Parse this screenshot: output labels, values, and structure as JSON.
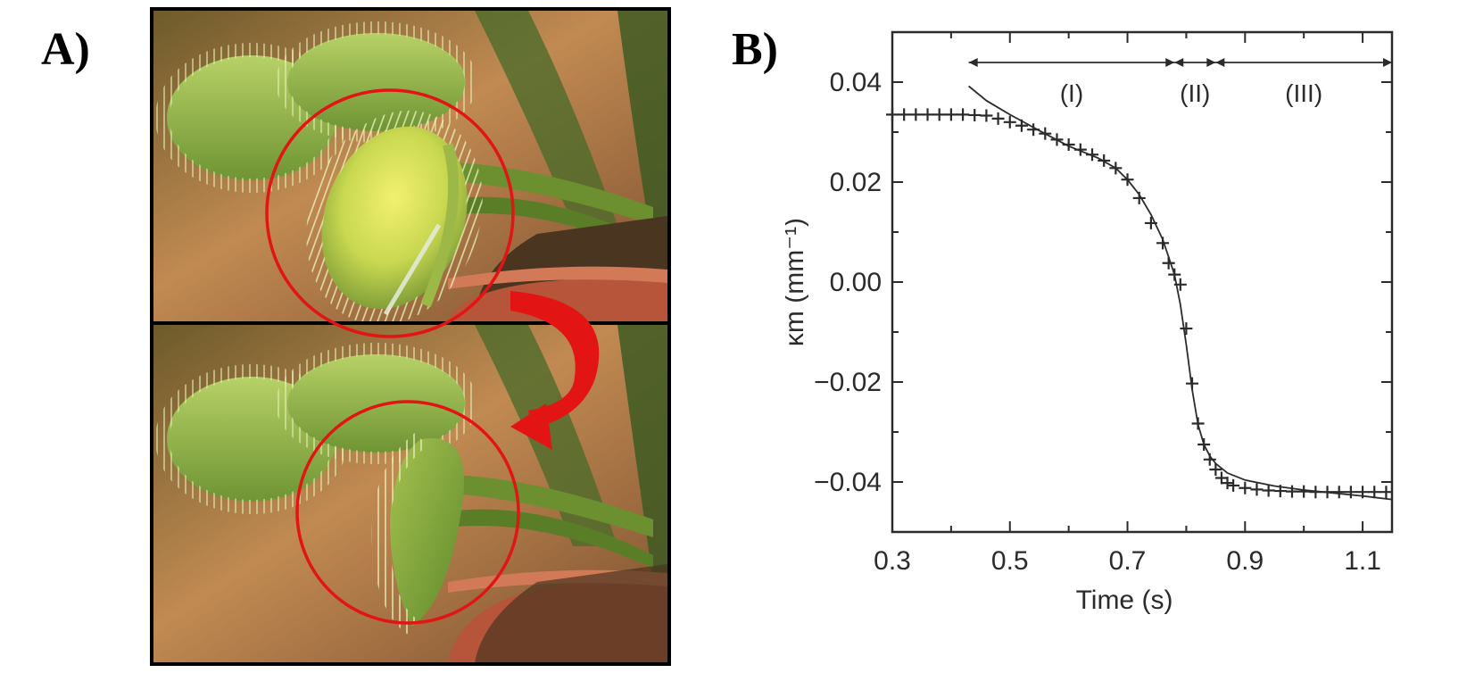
{
  "panels": {
    "a_label": "A)",
    "b_label": "B)"
  },
  "photo": {
    "frames": [
      {
        "state": "open"
      },
      {
        "state": "closed"
      }
    ],
    "highlight_color": "#e21414",
    "arrow_color": "#e21414"
  },
  "chart_data": {
    "type": "scatter",
    "title": "",
    "xlabel": "Time (s)",
    "ylabel": "κm (mm⁻¹)",
    "xlim": [
      0.3,
      1.15
    ],
    "ylim": [
      -0.05,
      0.05
    ],
    "x_ticks": [
      0.3,
      0.5,
      0.7,
      0.9,
      1.1
    ],
    "x_tick_labels": [
      "0.3",
      "0.5",
      "0.7",
      "0.9",
      "1.1"
    ],
    "y_ticks": [
      0.04,
      0.02,
      0.0,
      -0.02,
      -0.04
    ],
    "y_tick_labels": [
      "0.04",
      "0.02",
      "0.00",
      "−0.02",
      "−0.04"
    ],
    "grid": false,
    "phases": [
      {
        "label": "(I)",
        "x_start": 0.43,
        "x_end": 0.78
      },
      {
        "label": "(II)",
        "x_start": 0.78,
        "x_end": 0.85
      },
      {
        "label": "(III)",
        "x_start": 0.85,
        "x_end": 1.15
      }
    ],
    "series": [
      {
        "marker": "plus",
        "x": [
          0.3,
          0.32,
          0.34,
          0.36,
          0.38,
          0.4,
          0.42,
          0.44,
          0.46,
          0.48,
          0.5,
          0.52,
          0.54,
          0.56,
          0.58,
          0.6,
          0.62,
          0.64,
          0.66,
          0.68,
          0.7,
          0.72,
          0.74,
          0.76,
          0.77,
          0.78,
          0.79,
          0.8,
          0.81,
          0.82,
          0.83,
          0.84,
          0.85,
          0.86,
          0.87,
          0.88,
          0.9,
          0.92,
          0.94,
          0.96,
          0.98,
          1.0,
          1.02,
          1.04,
          1.06,
          1.08,
          1.1,
          1.12,
          1.14
        ],
        "y": [
          0.0335,
          0.0335,
          0.0335,
          0.0335,
          0.0335,
          0.0335,
          0.0335,
          0.0334,
          0.0333,
          0.0327,
          0.032,
          0.0313,
          0.0305,
          0.0297,
          0.0285,
          0.0275,
          0.0265,
          0.0255,
          0.0243,
          0.0228,
          0.0205,
          0.0168,
          0.0118,
          0.0078,
          0.0038,
          0.0015,
          -0.0005,
          -0.0093,
          -0.0203,
          -0.0283,
          -0.0325,
          -0.0355,
          -0.0375,
          -0.0392,
          -0.0402,
          -0.0407,
          -0.0412,
          -0.0415,
          -0.0417,
          -0.0418,
          -0.0419,
          -0.0419,
          -0.042,
          -0.042,
          -0.042,
          -0.042,
          -0.042,
          -0.042,
          -0.042
        ]
      },
      {
        "marker": "line",
        "x": [
          0.43,
          0.46,
          0.5,
          0.55,
          0.6,
          0.65,
          0.68,
          0.7,
          0.72,
          0.74,
          0.76,
          0.78,
          0.79,
          0.8,
          0.81,
          0.82,
          0.83,
          0.84,
          0.85,
          0.87,
          0.9,
          0.95,
          1.0,
          1.05,
          1.1,
          1.15
        ],
        "y": [
          0.0392,
          0.0363,
          0.0335,
          0.0303,
          0.0272,
          0.0248,
          0.0228,
          0.0205,
          0.0175,
          0.0135,
          0.0085,
          0.0015,
          -0.0045,
          -0.0125,
          -0.0215,
          -0.0285,
          -0.0325,
          -0.0348,
          -0.0363,
          -0.0382,
          -0.0396,
          -0.0408,
          -0.0416,
          -0.0422,
          -0.0428,
          -0.0435
        ]
      }
    ]
  }
}
